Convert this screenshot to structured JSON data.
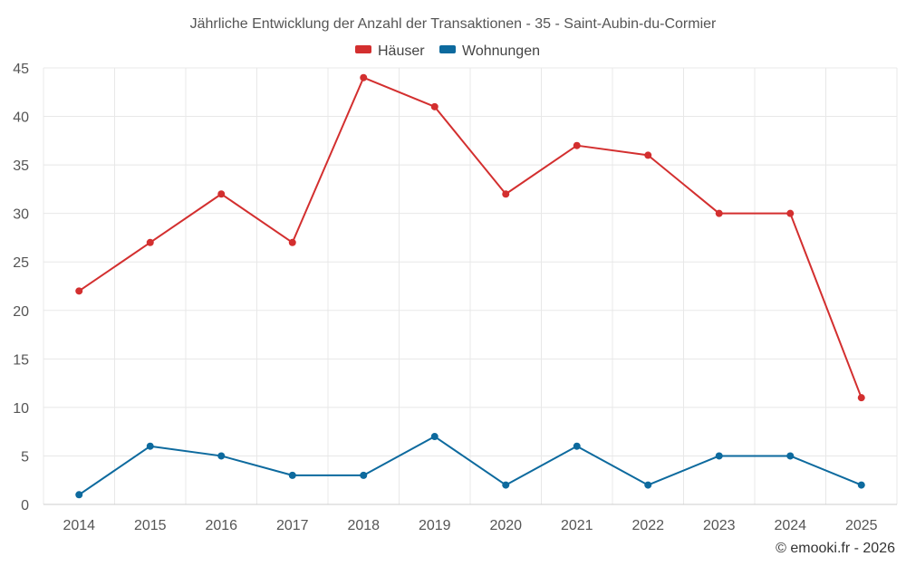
{
  "chart_data": {
    "type": "line",
    "title": "Jährliche Entwicklung der Anzahl der Transaktionen - 35 - Saint-Aubin-du-Cormier",
    "categories": [
      "2014",
      "2015",
      "2016",
      "2017",
      "2018",
      "2019",
      "2020",
      "2021",
      "2022",
      "2023",
      "2024",
      "2025"
    ],
    "series": [
      {
        "name": "Häuser",
        "color": "#d32f2f",
        "values": [
          22,
          27,
          32,
          27,
          44,
          41,
          32,
          37,
          36,
          30,
          30,
          11
        ]
      },
      {
        "name": "Wohnungen",
        "color": "#0d6a9e",
        "values": [
          1,
          6,
          5,
          3,
          3,
          7,
          2,
          6,
          2,
          5,
          5,
          2
        ]
      }
    ],
    "ylim": [
      0,
      45
    ],
    "yticks": [
      0,
      5,
      10,
      15,
      20,
      25,
      30,
      35,
      40,
      45
    ],
    "xlabel": "",
    "ylabel": "",
    "grid": true,
    "legend": "top-center"
  },
  "credit": "© emooki.fr - 2026"
}
